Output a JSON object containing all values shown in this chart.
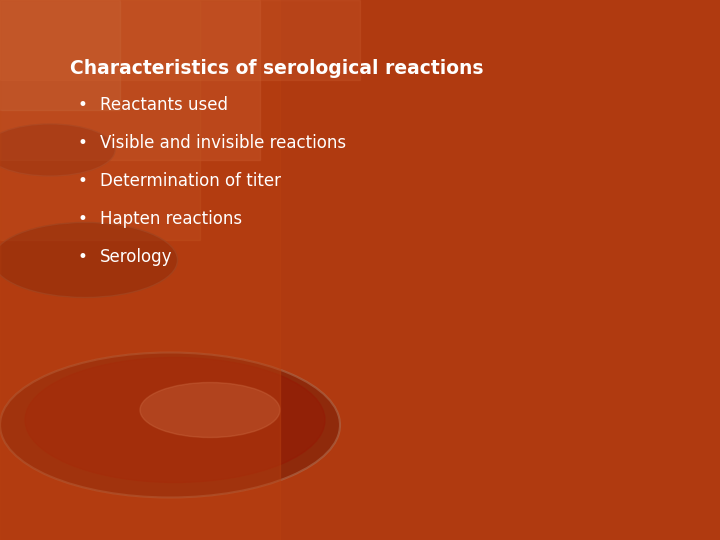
{
  "title": "Characteristics of serological reactions",
  "bullet_points": [
    "Reactants used",
    "Visible and invisible reactions",
    "Determination of titer",
    "Hapten reactions",
    "Serology"
  ],
  "bg_main": "#b03a10",
  "bg_mid": "#c04818",
  "bg_light_top_left": "#cc7755",
  "bg_top_right": "#b84015",
  "text_color": "#ffffff",
  "title_fontsize": 13.5,
  "bullet_fontsize": 12,
  "figsize": [
    7.2,
    5.4
  ],
  "dpi": 100
}
